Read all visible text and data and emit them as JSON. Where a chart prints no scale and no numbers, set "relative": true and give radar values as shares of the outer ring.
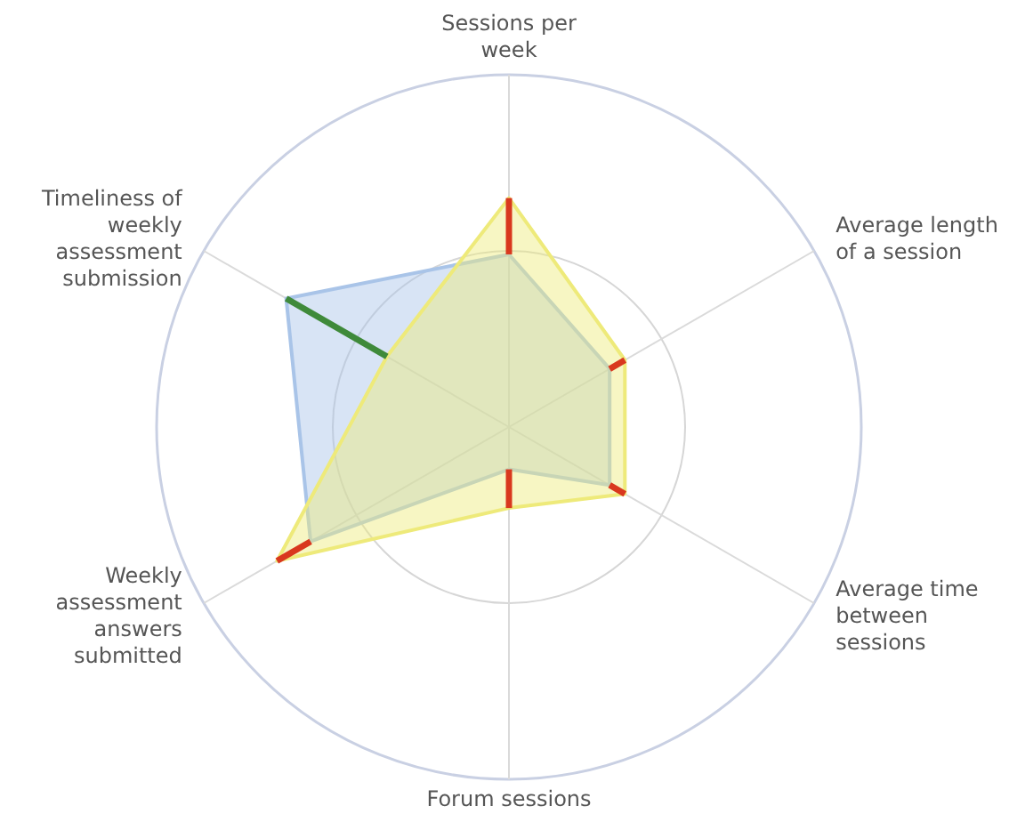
{
  "chart_data": {
    "type": "radar",
    "relative": true,
    "grid": true,
    "categories": [
      "Sessions per week",
      "Average length of a session",
      "Average time between sessions",
      "Forum sessions",
      "Weekly assessment answers submitted",
      "Timeliness of weekly assessment submission"
    ],
    "series": [
      {
        "color": "#a9c4e8",
        "values": [
          0.49,
          0.33,
          0.33,
          0.12,
          0.65,
          0.73
        ]
      },
      {
        "color": "#eeea7a",
        "values": [
          0.65,
          0.38,
          0.38,
          0.23,
          0.76,
          0.4
        ]
      }
    ]
  }
}
